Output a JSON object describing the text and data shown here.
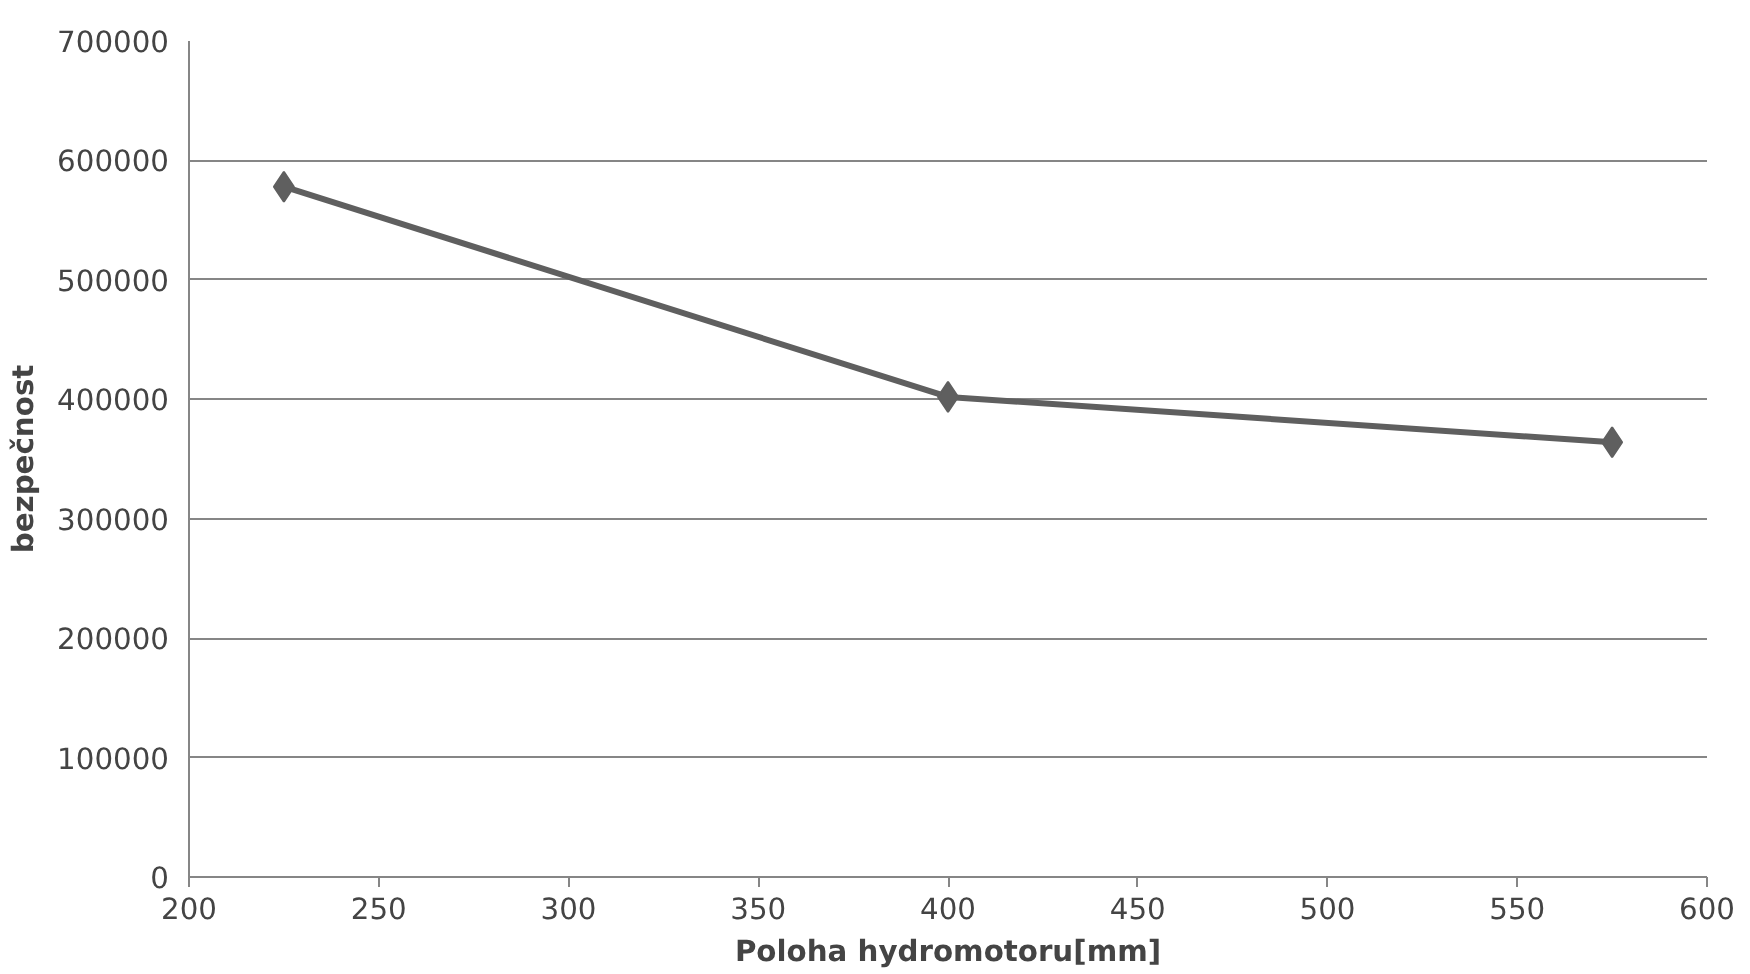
{
  "chart_data": {
    "type": "line",
    "xlabel": "Poloha hydromotoru[mm]",
    "ylabel": "bezpečnost",
    "x": [
      225,
      400,
      575
    ],
    "series": [
      {
        "color": "#5f5f5f",
        "values": [
          578000,
          402000,
          364000
        ]
      }
    ],
    "xlim": [
      200,
      600
    ],
    "xticks": [
      200,
      250,
      300,
      350,
      400,
      450,
      500,
      550,
      600
    ],
    "ylim": [
      0,
      700000
    ],
    "yticks": [
      0,
      100000,
      200000,
      300000,
      400000,
      500000,
      600000,
      700000
    ],
    "grid": "y",
    "marker": "diamond",
    "line_style": "solid"
  }
}
